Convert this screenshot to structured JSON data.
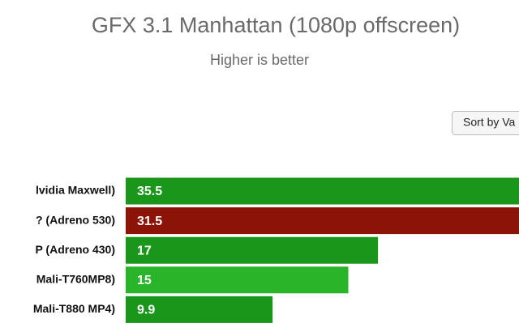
{
  "chart_data": {
    "type": "bar",
    "orientation": "horizontal",
    "title": "GFX 3.1 Manhattan (1080p offscreen)",
    "subtitle": "Higher is better",
    "categories": [
      "lvidia Maxwell)",
      "? (Adreno 530)",
      "P (Adreno 430)",
      "Mali-T760MP8)",
      "Mali-T880 MP4)"
    ],
    "values": [
      35.5,
      31.5,
      17,
      15,
      9.9
    ],
    "colors": [
      "#1a961a",
      "#8c1308",
      "#1a961a",
      "#2ab42a",
      "#1a961a"
    ]
  },
  "controls": {
    "sort_button": "Sort by Va"
  }
}
